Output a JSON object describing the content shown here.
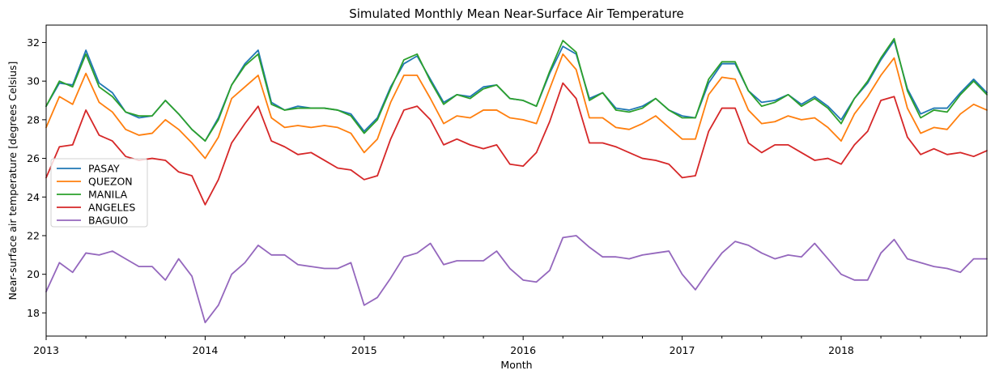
{
  "chart_data": {
    "type": "line",
    "title": "Simulated Monthly Mean Near-Surface Air Temperature",
    "xlabel": "Month",
    "ylabel": "Near-surface air temperature [degrees Celsius]",
    "ylim": [
      16.8,
      32.9
    ],
    "x_start": "2013-01",
    "x_end": "2018-12",
    "x_ticks": [
      "2013",
      "2014",
      "2015",
      "2016",
      "2017",
      "2018"
    ],
    "y_ticks": [
      18,
      20,
      22,
      24,
      26,
      28,
      30,
      32
    ],
    "grid": false,
    "legend_position": "left",
    "series": [
      {
        "name": "PASAY",
        "color": "#1f77b4",
        "values": [
          28.7,
          29.9,
          29.8,
          31.6,
          29.9,
          29.4,
          28.4,
          28.1,
          28.2,
          29.0,
          28.3,
          27.5,
          26.9,
          28.1,
          29.8,
          30.9,
          31.6,
          28.9,
          28.5,
          28.7,
          28.6,
          28.6,
          28.5,
          28.3,
          27.4,
          28.1,
          29.7,
          30.9,
          31.3,
          30.1,
          28.9,
          29.3,
          29.2,
          29.7,
          29.8,
          29.1,
          29.0,
          28.7,
          30.4,
          31.8,
          31.4,
          29.1,
          29.4,
          28.6,
          28.5,
          28.7,
          29.1,
          28.5,
          28.2,
          28.1,
          29.9,
          30.9,
          30.9,
          29.5,
          28.9,
          29.0,
          29.3,
          28.8,
          29.2,
          28.7,
          28.0,
          29.1,
          29.9,
          31.1,
          32.1,
          29.6,
          28.3,
          28.6,
          28.6,
          29.4,
          30.1,
          29.4
        ]
      },
      {
        "name": "QUEZON",
        "color": "#ff7f0e",
        "values": [
          27.6,
          29.2,
          28.8,
          30.4,
          28.9,
          28.4,
          27.5,
          27.2,
          27.3,
          28.0,
          27.5,
          26.8,
          26.0,
          27.1,
          29.1,
          29.7,
          30.3,
          28.1,
          27.6,
          27.7,
          27.6,
          27.7,
          27.6,
          27.3,
          26.3,
          27.0,
          28.9,
          30.3,
          30.3,
          29.1,
          27.8,
          28.2,
          28.1,
          28.5,
          28.5,
          28.1,
          28.0,
          27.8,
          29.6,
          31.4,
          30.6,
          28.1,
          28.1,
          27.6,
          27.5,
          27.8,
          28.2,
          27.6,
          27.0,
          27.0,
          29.3,
          30.2,
          30.1,
          28.5,
          27.8,
          27.9,
          28.2,
          28.0,
          28.1,
          27.6,
          26.9,
          28.3,
          29.2,
          30.3,
          31.2,
          28.6,
          27.3,
          27.6,
          27.5,
          28.3,
          28.8,
          28.5
        ]
      },
      {
        "name": "MANILA",
        "color": "#2ca02c",
        "values": [
          28.7,
          30.0,
          29.7,
          31.4,
          29.7,
          29.2,
          28.4,
          28.2,
          28.2,
          29.0,
          28.3,
          27.5,
          26.9,
          28.0,
          29.8,
          30.8,
          31.4,
          28.8,
          28.5,
          28.6,
          28.6,
          28.6,
          28.5,
          28.2,
          27.3,
          28.0,
          29.6,
          31.1,
          31.4,
          30.0,
          28.8,
          29.3,
          29.1,
          29.6,
          29.8,
          29.1,
          29.0,
          28.7,
          30.5,
          32.1,
          31.5,
          29.0,
          29.4,
          28.5,
          28.4,
          28.6,
          29.1,
          28.5,
          28.1,
          28.1,
          30.1,
          31.0,
          31.0,
          29.5,
          28.7,
          28.9,
          29.3,
          28.7,
          29.1,
          28.6,
          27.8,
          29.1,
          30.0,
          31.2,
          32.2,
          29.5,
          28.1,
          28.5,
          28.4,
          29.3,
          30.0,
          29.3
        ]
      },
      {
        "name": "ANGELES",
        "color": "#d62728",
        "values": [
          25.0,
          26.6,
          26.7,
          28.5,
          27.2,
          26.9,
          26.1,
          25.9,
          26.0,
          25.9,
          25.3,
          25.1,
          23.6,
          24.9,
          26.8,
          27.8,
          28.7,
          26.9,
          26.6,
          26.2,
          26.3,
          25.9,
          25.5,
          25.4,
          24.9,
          25.1,
          27.0,
          28.5,
          28.7,
          28.0,
          26.7,
          27.0,
          26.7,
          26.5,
          26.7,
          25.7,
          25.6,
          26.3,
          27.9,
          29.9,
          29.1,
          26.8,
          26.8,
          26.6,
          26.3,
          26.0,
          25.9,
          25.7,
          25.0,
          25.1,
          27.4,
          28.6,
          28.6,
          26.8,
          26.3,
          26.7,
          26.7,
          26.3,
          25.9,
          26.0,
          25.7,
          26.7,
          27.4,
          29.0,
          29.2,
          27.1,
          26.2,
          26.5,
          26.2,
          26.3,
          26.1,
          26.4
        ]
      },
      {
        "name": "BAGUIO",
        "color": "#9467bd",
        "values": [
          19.1,
          20.6,
          20.1,
          21.1,
          21.0,
          21.2,
          20.8,
          20.4,
          20.4,
          19.7,
          20.8,
          19.9,
          17.5,
          18.4,
          20.0,
          20.6,
          21.5,
          21.0,
          21.0,
          20.5,
          20.4,
          20.3,
          20.3,
          20.6,
          18.4,
          18.8,
          19.8,
          20.9,
          21.1,
          21.6,
          20.5,
          20.7,
          20.7,
          20.7,
          21.2,
          20.3,
          19.7,
          19.6,
          20.2,
          21.9,
          22.0,
          21.4,
          20.9,
          20.9,
          20.8,
          21.0,
          21.1,
          21.2,
          20.0,
          19.2,
          20.2,
          21.1,
          21.7,
          21.5,
          21.1,
          20.8,
          21.0,
          20.9,
          21.6,
          20.8,
          20.0,
          19.7,
          19.7,
          21.1,
          21.8,
          20.8,
          20.6,
          20.4,
          20.3,
          20.1,
          20.8,
          20.8
        ]
      }
    ]
  }
}
